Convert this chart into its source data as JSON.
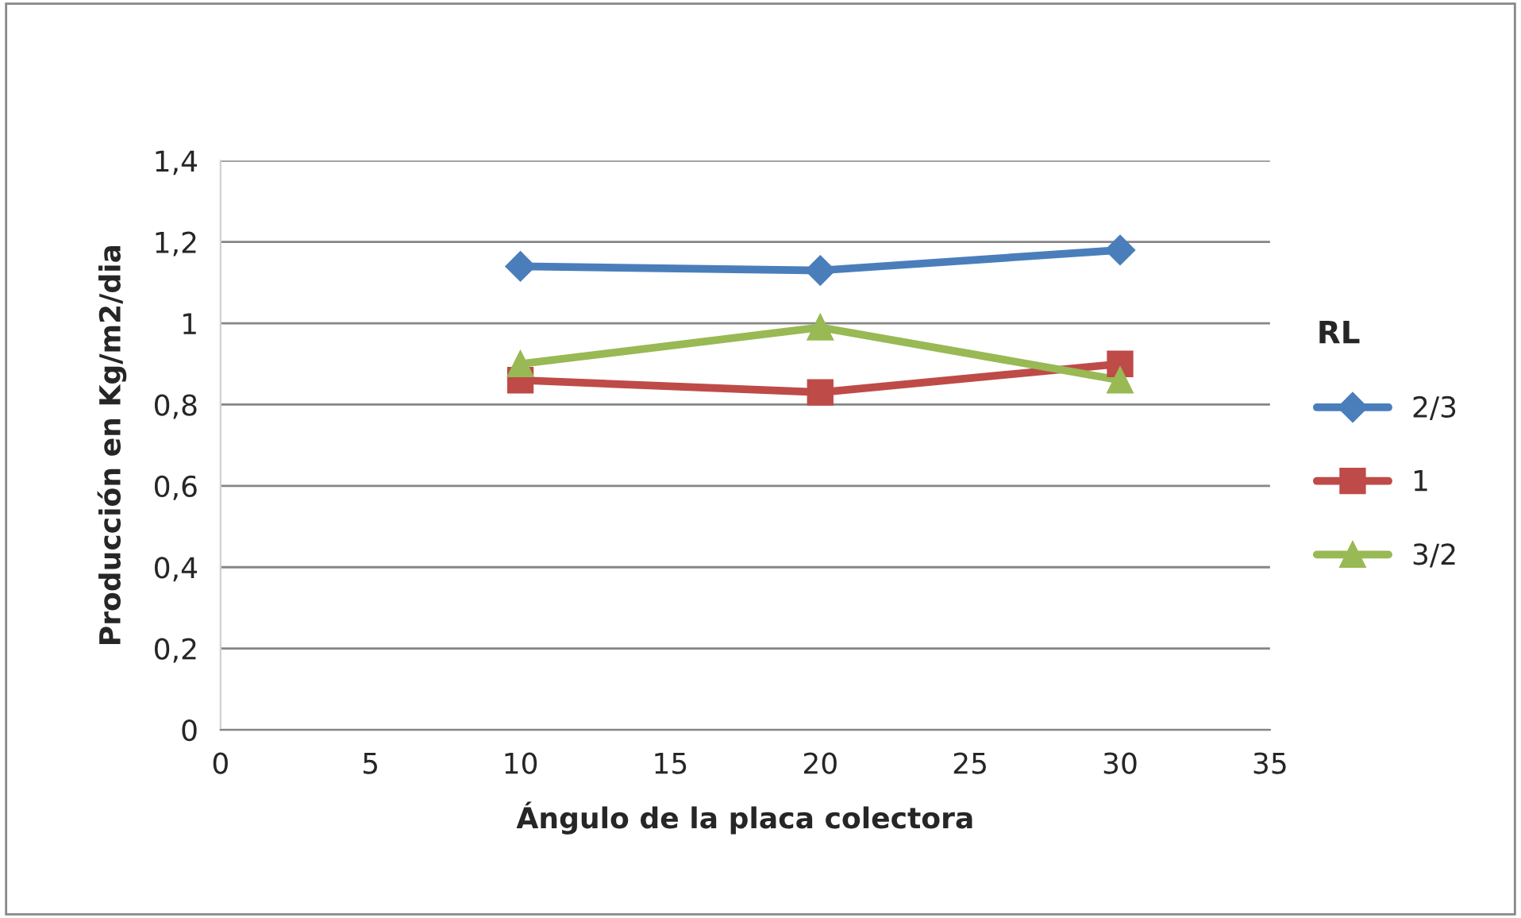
{
  "chart_data": {
    "type": "line",
    "xlabel": "Ángulo de la placa colectora",
    "ylabel": "Producción en Kg/m2/dia",
    "legend_title": "RL",
    "x": [
      10,
      20,
      30
    ],
    "series": [
      {
        "name": "2/3",
        "color": "#4a7ebb",
        "marker": "diamond",
        "values": [
          1.14,
          1.13,
          1.18
        ]
      },
      {
        "name": "1",
        "color": "#be4b48",
        "marker": "square",
        "values": [
          0.86,
          0.83,
          0.9
        ]
      },
      {
        "name": "3/2",
        "color": "#98b954",
        "marker": "triangle",
        "values": [
          0.9,
          0.99,
          0.86
        ]
      }
    ],
    "xlim": [
      0,
      35
    ],
    "xticks": [
      0,
      5,
      10,
      15,
      20,
      25,
      30,
      35
    ],
    "ylim": [
      0,
      1.4
    ],
    "yticks": [
      0,
      {
        "value": 0.2,
        "label": "0,2"
      },
      {
        "value": 0.4,
        "label": "0,4"
      },
      {
        "value": 0.6,
        "label": "0,6"
      },
      {
        "value": 0.8,
        "label": "0,8"
      },
      1,
      {
        "value": 1.2,
        "label": "1,2"
      },
      {
        "value": 1.4,
        "label": "1,4"
      }
    ],
    "grid": "y",
    "legend": "right",
    "line_style": "solid"
  }
}
